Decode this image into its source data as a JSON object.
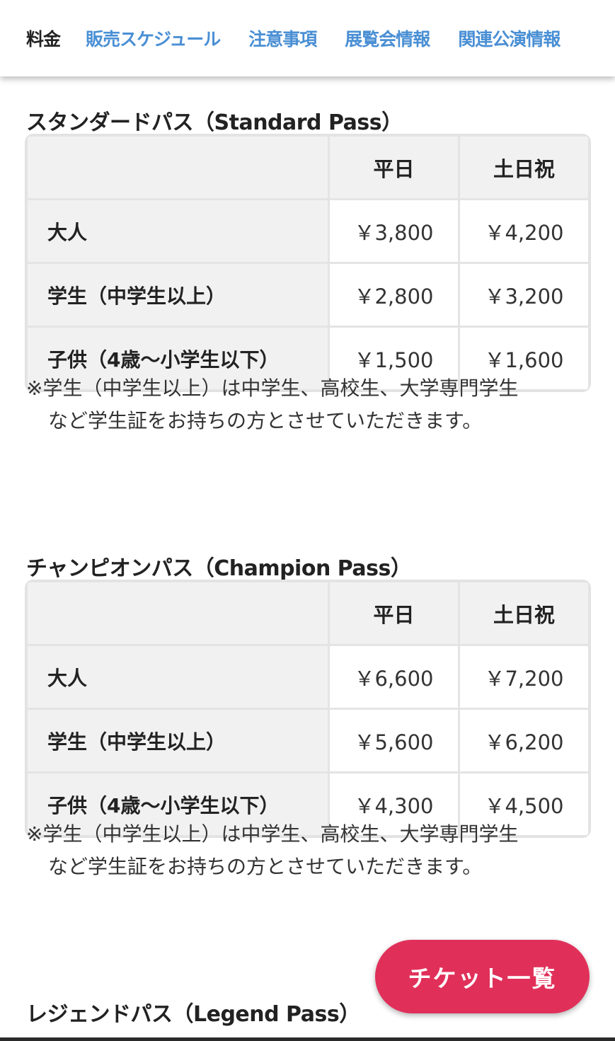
{
  "nav": {
    "items": [
      {
        "label": "料金",
        "active": true
      },
      {
        "label": "販売スケジュール"
      },
      {
        "label": "注意事項"
      },
      {
        "label": "展覧会情報"
      },
      {
        "label": "関連公演情報"
      }
    ]
  },
  "colors": {
    "link": "#4a8fd4",
    "button": "#e0305a"
  },
  "sections": [
    {
      "title": "スタンダードパス（Standard Pass）",
      "headers": [
        "",
        "平日",
        "土日祝"
      ],
      "rows": [
        {
          "label": "大人",
          "weekday": "￥3,800",
          "holiday": "￥4,200"
        },
        {
          "label": "学生（中学生以上）",
          "weekday": "￥2,800",
          "holiday": "￥3,200"
        },
        {
          "label": "子供（4歳〜小学生以下）",
          "weekday": "￥1,500",
          "holiday": "￥1,600"
        }
      ],
      "note": [
        "※学生（中学生以上）は中学生、高校生、大学専門学生",
        "など学生証をお持ちの方とさせていただきます。"
      ]
    },
    {
      "title": "チャンピオンパス（Champion Pass）",
      "headers": [
        "",
        "平日",
        "土日祝"
      ],
      "rows": [
        {
          "label": "大人",
          "weekday": "￥6,600",
          "holiday": "￥7,200"
        },
        {
          "label": "学生（中学生以上）",
          "weekday": "￥5,600",
          "holiday": "￥6,200"
        },
        {
          "label": "子供（4歳〜小学生以下）",
          "weekday": "￥4,300",
          "holiday": "￥4,500"
        }
      ],
      "note": [
        "※学生（中学生以上）は中学生、高校生、大学専門学生",
        "など学生証をお持ちの方とさせていただきます。"
      ]
    },
    {
      "title": "レジェンドパス（Legend Pass）"
    }
  ],
  "ticket_button": {
    "label": "チケット一覧"
  }
}
